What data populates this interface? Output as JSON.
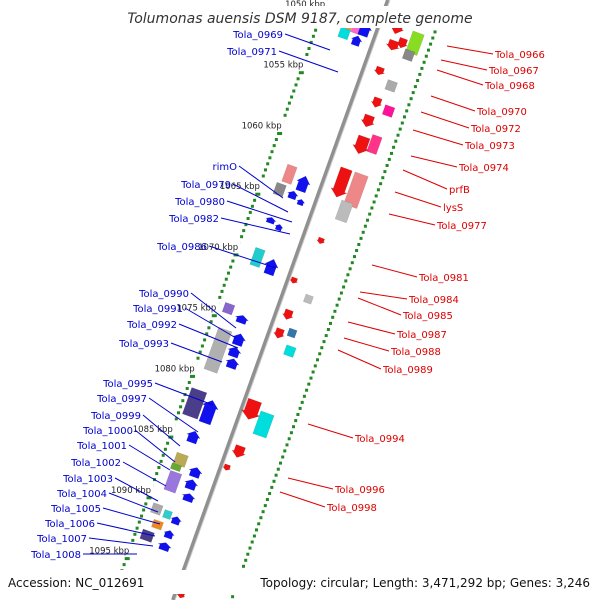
{
  "title": "Tolumonas auensis DSM 9187, complete genome",
  "footer": {
    "accession": "Accession: NC_012691",
    "summary": "Topology: circular; Length: 3,471,292 bp; Genes: 3,246"
  },
  "colors": {
    "forward_label": "#0000cc",
    "reverse_label": "#dd0000",
    "backbone": "#8c8c8c",
    "tick": "#228822",
    "forward_gene": "#1111ee",
    "reverse_gene": "#ee1111"
  },
  "scale": {
    "start_kbp": 1047.4,
    "end_kbp": 1096.8,
    "ticks": [
      {
        "kbp": 1050,
        "label": "1050 kbp"
      },
      {
        "kbp": 1055,
        "label": "1055 kbp"
      },
      {
        "kbp": 1060,
        "label": "1060 kbp"
      },
      {
        "kbp": 1065,
        "label": "1065 kbp"
      },
      {
        "kbp": 1070,
        "label": "1070 kbp"
      },
      {
        "kbp": 1075,
        "label": "1075 kbp"
      },
      {
        "kbp": 1080,
        "label": "1080 kbp"
      },
      {
        "kbp": 1085,
        "label": "1085 kbp"
      },
      {
        "kbp": 1090,
        "label": "1090 kbp"
      },
      {
        "kbp": 1095,
        "label": "1095 kbp"
      }
    ]
  },
  "forward_labels": [
    "Tola_0969",
    "Tola_0971",
    "rimO",
    "Tola_0979",
    "Tola_0980",
    "Tola_0982",
    "Tola_0986",
    "Tola_0990",
    "Tola_0991",
    "Tola_0992",
    "Tola_0993",
    "Tola_0995",
    "Tola_0997",
    "Tola_0999",
    "Tola_1000",
    "Tola_1001",
    "Tola_1002",
    "Tola_1003",
    "Tola_1004",
    "Tola_1005",
    "Tola_1006",
    "Tola_1007",
    "Tola_1008"
  ],
  "reverse_labels": [
    "Tola_0966",
    "Tola_0967",
    "Tola_0968",
    "Tola_0970",
    "Tola_0972",
    "Tola_0973",
    "Tola_0974",
    "prfB",
    "lysS",
    "Tola_0977",
    "Tola_0981",
    "Tola_0984",
    "Tola_0985",
    "Tola_0987",
    "Tola_0988",
    "Tola_0989",
    "Tola_0994",
    "Tola_0996",
    "Tola_0998"
  ]
}
